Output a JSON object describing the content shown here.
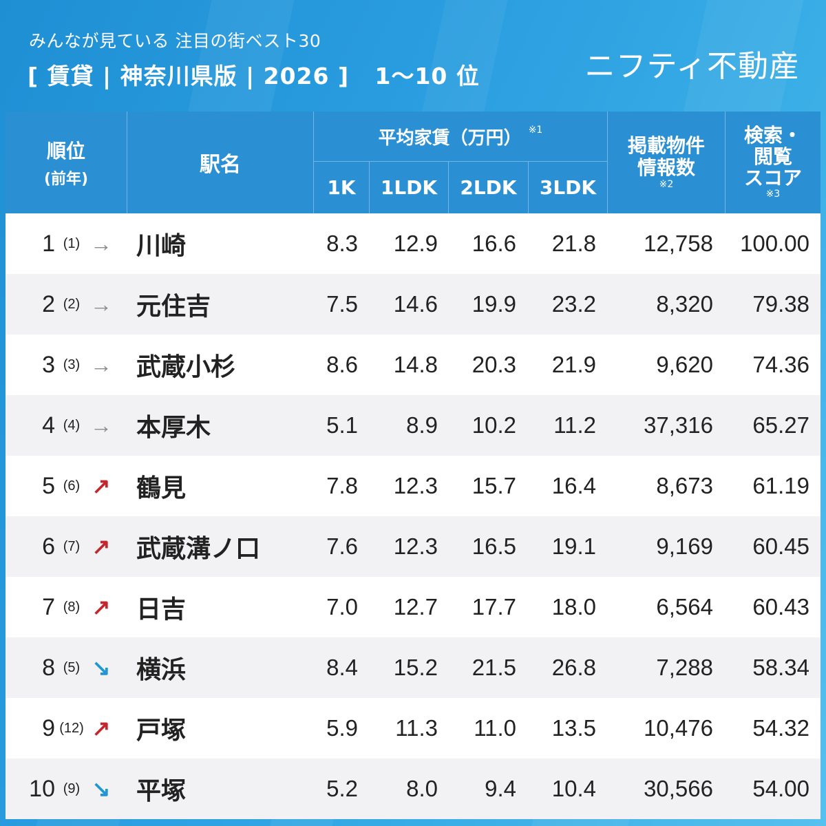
{
  "header": {
    "subtitle": "みんなが見ている 注目の街ベスト30",
    "title": "[ 賃貸 | 神奈川県版 | 2026 ]   1〜10 位",
    "brand": "ニフティ不動産"
  },
  "table": {
    "headers": {
      "rank": "順位",
      "rank_prev": "(前年)",
      "station": "駅名",
      "avg_rent": "平均家賃（万円）",
      "avg_rent_note": "※1",
      "k1": "1K",
      "ldk1": "1LDK",
      "ldk2": "2LDK",
      "ldk3": "3LDK",
      "listings_line1": "掲載物件",
      "listings_line2": "情報数",
      "listings_note": "※2",
      "score_line1": "検索・",
      "score_line2": "閲覧",
      "score_line3": "スコア",
      "score_note": "※3"
    },
    "rows": [
      {
        "rank": "1",
        "prev": "(1)",
        "trend": "flat",
        "arrow": "→",
        "station": "川崎",
        "k1": "8.3",
        "ldk1": "12.9",
        "ldk2": "16.6",
        "ldk3": "21.8",
        "listings": "12,758",
        "score": "100.00"
      },
      {
        "rank": "2",
        "prev": "(2)",
        "trend": "flat",
        "arrow": "→",
        "station": "元住吉",
        "k1": "7.5",
        "ldk1": "14.6",
        "ldk2": "19.9",
        "ldk3": "23.2",
        "listings": "8,320",
        "score": "79.38"
      },
      {
        "rank": "3",
        "prev": "(3)",
        "trend": "flat",
        "arrow": "→",
        "station": "武蔵小杉",
        "k1": "8.6",
        "ldk1": "14.8",
        "ldk2": "20.3",
        "ldk3": "21.9",
        "listings": "9,620",
        "score": "74.36"
      },
      {
        "rank": "4",
        "prev": "(4)",
        "trend": "flat",
        "arrow": "→",
        "station": "本厚木",
        "k1": "5.1",
        "ldk1": "8.9",
        "ldk2": "10.2",
        "ldk3": "11.2",
        "listings": "37,316",
        "score": "65.27"
      },
      {
        "rank": "5",
        "prev": "(6)",
        "trend": "up",
        "arrow": "↗",
        "station": "鶴見",
        "k1": "7.8",
        "ldk1": "12.3",
        "ldk2": "15.7",
        "ldk3": "16.4",
        "listings": "8,673",
        "score": "61.19"
      },
      {
        "rank": "6",
        "prev": "(7)",
        "trend": "up",
        "arrow": "↗",
        "station": "武蔵溝ノ口",
        "k1": "7.6",
        "ldk1": "12.3",
        "ldk2": "16.5",
        "ldk3": "19.1",
        "listings": "9,169",
        "score": "60.45"
      },
      {
        "rank": "7",
        "prev": "(8)",
        "trend": "up",
        "arrow": "↗",
        "station": "日吉",
        "k1": "7.0",
        "ldk1": "12.7",
        "ldk2": "17.7",
        "ldk3": "18.0",
        "listings": "6,564",
        "score": "60.43"
      },
      {
        "rank": "8",
        "prev": "(5)",
        "trend": "down",
        "arrow": "↘",
        "station": "横浜",
        "k1": "8.4",
        "ldk1": "15.2",
        "ldk2": "21.5",
        "ldk3": "26.8",
        "listings": "7,288",
        "score": "58.34"
      },
      {
        "rank": "9",
        "prev": "(12)",
        "trend": "up",
        "arrow": "↗",
        "station": "戸塚",
        "k1": "5.9",
        "ldk1": "11.3",
        "ldk2": "11.0",
        "ldk3": "13.5",
        "listings": "10,476",
        "score": "54.32"
      },
      {
        "rank": "10",
        "prev": "(9)",
        "trend": "down",
        "arrow": "↘",
        "station": "平塚",
        "k1": "5.2",
        "ldk1": "8.0",
        "ldk2": "9.4",
        "ldk3": "10.4",
        "listings": "30,566",
        "score": "54.00"
      }
    ]
  },
  "colors": {
    "header_bg": "#2b90d3",
    "up": "#c1272d",
    "down": "#2196d3",
    "flat": "#8c8c8c"
  }
}
